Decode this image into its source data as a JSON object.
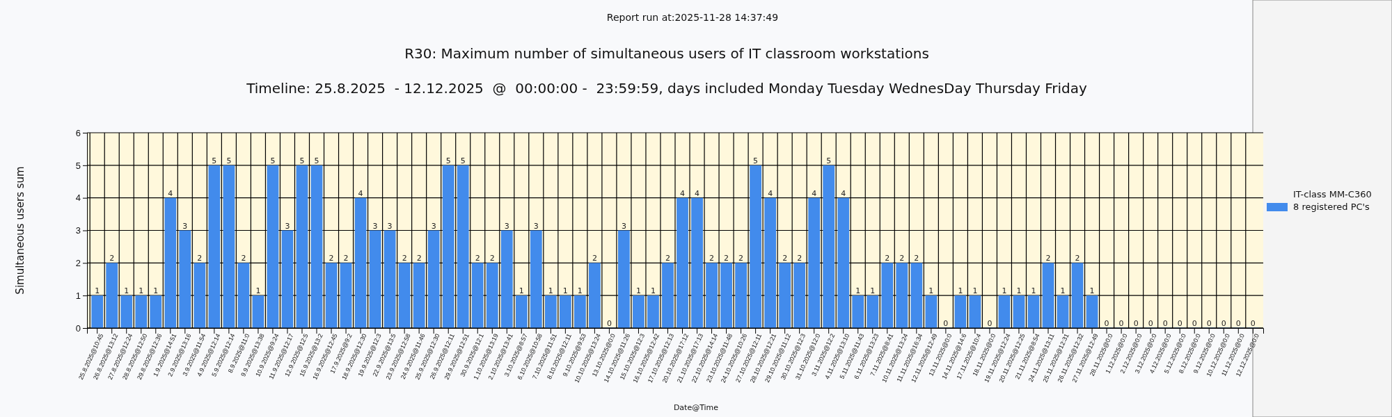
{
  "chart_data": {
    "type": "bar",
    "title": "R30: Maximum number of simultaneous users of IT classroom workstations",
    "subtitle": "Timeline: 25.8.2025  - 12.12.2025  @  00:00:00 -  23:59:59, days included Monday Tuesday WednesDay Thursday Friday",
    "annotations": [
      "Report run at:2025-11-28 14:37:49"
    ],
    "xlabel": "Date@Time",
    "ylabel": "Simultaneous users sum",
    "categories": [
      "25.8.2025@10:45",
      "26.8.2025@13:12",
      "27.8.2025@12:24",
      "28.8.2025@12:50",
      "29.8.2025@12:36",
      "1.9.2025@14:51",
      "2.9.2025@13:16",
      "3.9.2025@11:54",
      "4.9.2025@12:14",
      "5.9.2025@12:14",
      "8.9.2025@11:0",
      "9.9.2025@13:38",
      "10.9.2025@9:24",
      "11.9.2025@12:17",
      "12.9.2025@12:5",
      "15.9.2025@13:2",
      "16.9.2025@12:45",
      "17.9.2025@9:2",
      "18.9.2025@12:30",
      "19.9.2025@12:3",
      "22.9.2025@13:5",
      "23.9.2025@12:58",
      "24.9.2025@11:46",
      "25.9.2025@12:30",
      "26.9.2025@12:11",
      "29.9.2025@12:51",
      "30.9.2025@12:1",
      "1.10.2025@13:19",
      "2.10.2025@13:41",
      "3.10.2025@8:57",
      "6.10.2025@10:58",
      "7.10.2025@11:51",
      "8.10.2025@12:11",
      "9.10.2025@9:53",
      "10.10.2025@13:24",
      "13.10.2025@0:0",
      "14.10.2025@11:26",
      "15.10.2025@12:3",
      "16.10.2025@12:42",
      "17.10.2025@12:13",
      "20.10.2025@17:12",
      "21.10.2025@17:13",
      "22.10.2025@14:14",
      "23.10.2025@11:48",
      "24.10.2025@10:26",
      "27.10.2025@12:11",
      "28.10.2025@12:21",
      "29.10.2025@11:12",
      "30.10.2025@12:3",
      "31.10.2025@12:0",
      "3.11.2025@12:2",
      "4.11.2025@13:10",
      "5.11.2025@11:43",
      "6.11.2025@13:23",
      "7.11.2025@8:41",
      "10.11.2025@13:24",
      "11.11.2025@16:34",
      "12.11.2025@12:49",
      "13.11.2025@0:0",
      "14.11.2025@14:6",
      "17.11.2025@10:4",
      "18.11.2025@0:0",
      "19.11.2025@12:24",
      "20.11.2025@12:25",
      "21.11.2025@8:54",
      "24.11.2025@13:11",
      "25.11.2025@12:31",
      "26.11.2025@12:32",
      "27.11.2025@12:49",
      "28.11.2025@0:0",
      "1.12.2025@0:0",
      "2.12.2025@0:0",
      "3.12.2025@0:0",
      "4.12.2025@0:0",
      "5.12.2025@0:0",
      "8.12.2025@0:0",
      "9.12.2025@0:0",
      "10.12.2025@0:0",
      "11.12.2025@0:0",
      "12.12.2025@0:0"
    ],
    "series": [
      {
        "name": "IT-class MM-C360 8 registered PC's",
        "color": "#428bec",
        "values": [
          1,
          2,
          1,
          1,
          1,
          4,
          3,
          2,
          5,
          5,
          2,
          1,
          5,
          3,
          5,
          5,
          2,
          2,
          4,
          3,
          3,
          2,
          2,
          3,
          5,
          5,
          2,
          2,
          3,
          1,
          3,
          1,
          1,
          1,
          2,
          0,
          3,
          1,
          1,
          2,
          4,
          4,
          2,
          2,
          2,
          5,
          4,
          2,
          2,
          4,
          5,
          4,
          1,
          1,
          2,
          2,
          2,
          1,
          0,
          1,
          1,
          0,
          1,
          1,
          1,
          2,
          1,
          2,
          1,
          0,
          0,
          0,
          0,
          0,
          0,
          0,
          0,
          0,
          0,
          0
        ]
      }
    ],
    "ylim": [
      0,
      6
    ],
    "yticks": [
      0,
      1,
      2,
      3,
      4,
      5,
      6
    ],
    "grid": true,
    "legend": "right",
    "data_labels": true
  }
}
